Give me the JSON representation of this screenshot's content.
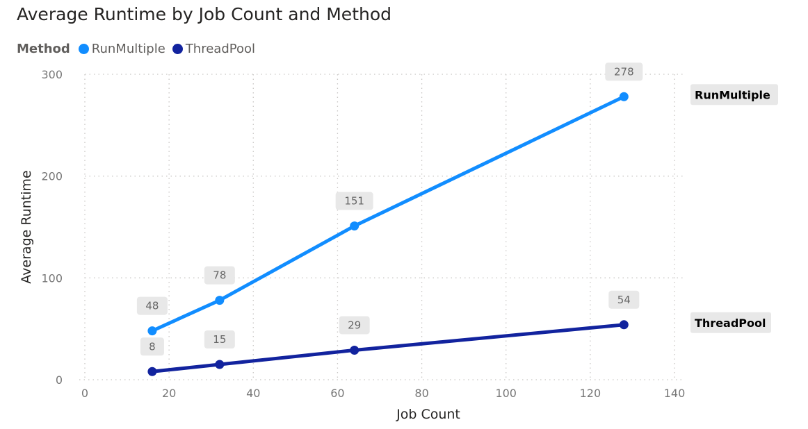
{
  "chart_data": {
    "type": "line",
    "title": "Average Runtime by Job Count and Method",
    "legend": {
      "title": "Method",
      "position": "top-left"
    },
    "xlabel": "Job Count",
    "ylabel": "Average Runtime",
    "xlim": [
      0,
      140
    ],
    "ylim": [
      0,
      300
    ],
    "x_ticks": [
      "0",
      "20",
      "40",
      "60",
      "80",
      "100",
      "120",
      "140"
    ],
    "y_ticks": [
      "0",
      "100",
      "200",
      "300"
    ],
    "grid": true,
    "x": [
      16,
      32,
      64,
      128
    ],
    "series": [
      {
        "name": "RunMultiple",
        "color": "#118DFF",
        "values": [
          48,
          78,
          151,
          278
        ],
        "labels": [
          "48",
          "78",
          "151",
          "278"
        ]
      },
      {
        "name": "ThreadPool",
        "color": "#12239E",
        "values": [
          8,
          15,
          29,
          54
        ],
        "labels": [
          "8",
          "15",
          "29",
          "54"
        ]
      }
    ]
  }
}
